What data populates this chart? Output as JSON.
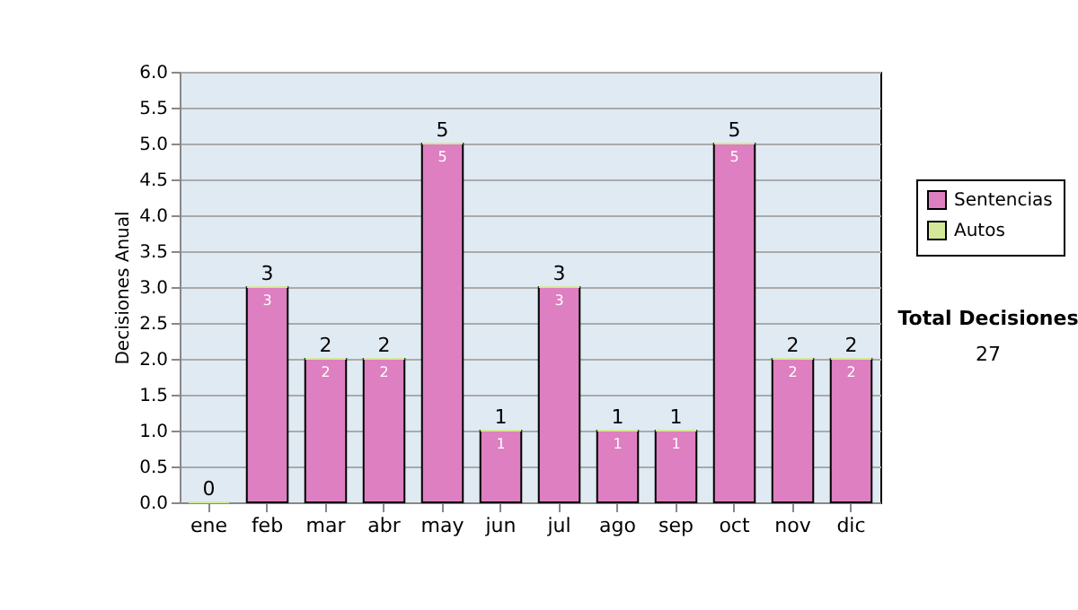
{
  "chart_data": {
    "type": "bar",
    "ylabel": "Decisiones Anual",
    "categories": [
      "ene",
      "feb",
      "mar",
      "abr",
      "may",
      "jun",
      "jul",
      "ago",
      "sep",
      "oct",
      "nov",
      "dic"
    ],
    "stacked": true,
    "series": [
      {
        "name": "Sentencias",
        "color": "#dd7fc0",
        "values": [
          0,
          3,
          2,
          2,
          5,
          1,
          3,
          1,
          1,
          5,
          2,
          2
        ],
        "value_labels": [
          null,
          "3",
          "2",
          "2",
          "5",
          "1",
          "3",
          "1",
          "1",
          "5",
          "2",
          "2"
        ]
      },
      {
        "name": "Autos",
        "color": "#d4e89a",
        "values": [
          0,
          0,
          0,
          0,
          0,
          0,
          0,
          0,
          0,
          0,
          0,
          0
        ]
      }
    ],
    "totals": [
      "0",
      "3",
      "2",
      "2",
      "5",
      "1",
      "3",
      "1",
      "1",
      "5",
      "2",
      "2"
    ],
    "ylim": [
      0,
      6
    ],
    "yticks": [
      {
        "value": 0,
        "label": "0.0"
      },
      {
        "value": 0.5,
        "label": "0.5"
      },
      {
        "value": 1,
        "label": "1.0"
      },
      {
        "value": 1.5,
        "label": "1.5"
      },
      {
        "value": 2,
        "label": "2.0"
      },
      {
        "value": 2.5,
        "label": "2.5"
      },
      {
        "value": 3,
        "label": "3.0"
      },
      {
        "value": 3.5,
        "label": "3.5"
      },
      {
        "value": 4,
        "label": "4.0"
      },
      {
        "value": 4.5,
        "label": "4.5"
      },
      {
        "value": 5,
        "label": "5.0"
      },
      {
        "value": 5.5,
        "label": "5.5"
      },
      {
        "value": 6,
        "label": "6.0"
      }
    ],
    "grid": "y",
    "legend": "right",
    "annotations": [
      "Total Decisiones",
      "27"
    ]
  }
}
